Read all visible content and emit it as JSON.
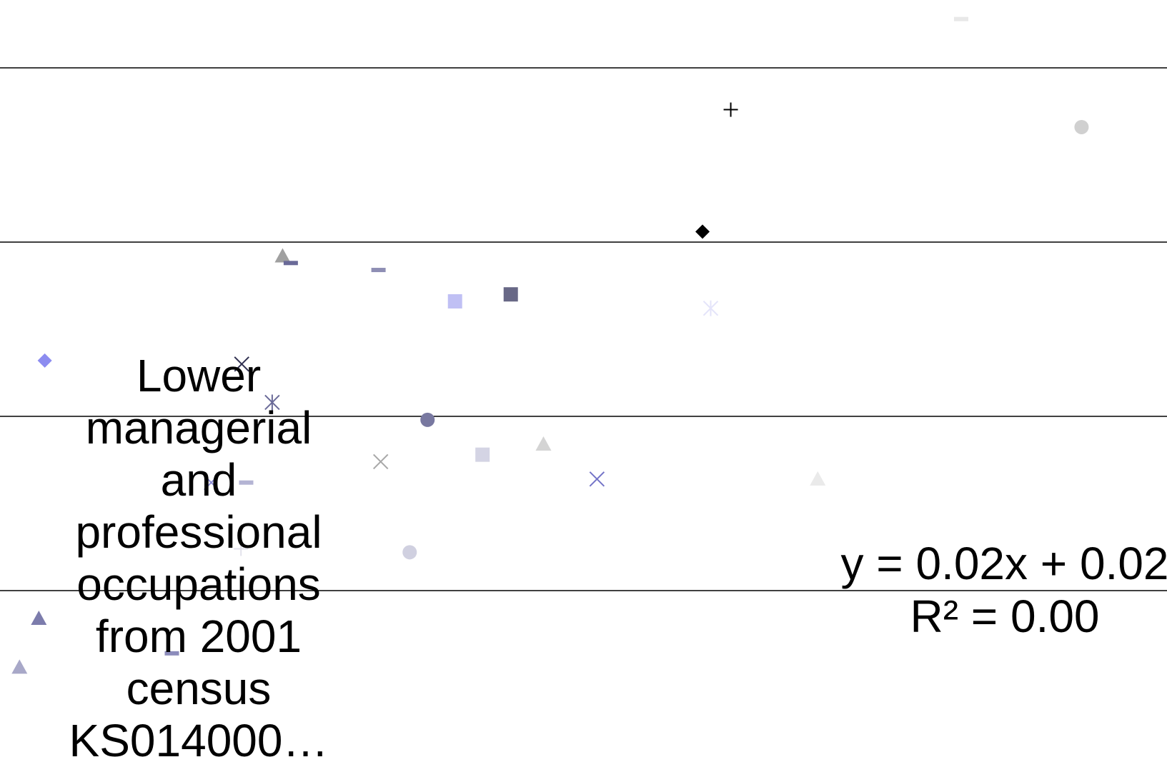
{
  "chart_data": {
    "type": "scatter",
    "grid": true,
    "ylim": [
      -0.25,
      1.75
    ],
    "gridlines_y": [
      0,
      0.5,
      1,
      1.5
    ],
    "series": [
      {
        "marker": "diamond",
        "color": "#8c8cf0",
        "x": 0.41,
        "y": 0.66
      },
      {
        "marker": "x",
        "color": "#303050",
        "x": 3.06,
        "y": 0.65
      },
      {
        "marker": "star",
        "color": "#6a6a98",
        "x": 3.47,
        "y": 0.54
      },
      {
        "marker": "triangle",
        "color": "#a0a0a0",
        "x": 3.61,
        "y": 0.96
      },
      {
        "marker": "dash",
        "color": "#6a6a98",
        "x": 3.72,
        "y": 0.94
      },
      {
        "marker": "dash",
        "color": "#8e8eb4",
        "x": 4.9,
        "y": 0.92
      },
      {
        "marker": "square",
        "color": "#c0c0f4",
        "x": 5.93,
        "y": 0.83
      },
      {
        "marker": "square",
        "color": "#686886",
        "x": 6.68,
        "y": 0.85
      },
      {
        "marker": "circle",
        "color": "#7878a0",
        "x": 5.56,
        "y": 0.49
      },
      {
        "marker": "x",
        "color": "#a8a8a8",
        "x": 4.93,
        "y": 0.37
      },
      {
        "marker": "square",
        "color": "#d4d4e4",
        "x": 6.3,
        "y": 0.39
      },
      {
        "marker": "triangle",
        "color": "#d4d4d4",
        "x": 7.12,
        "y": 0.42
      },
      {
        "marker": "x",
        "color": "#7474c8",
        "x": 7.84,
        "y": 0.32
      },
      {
        "marker": "triangle",
        "color": "#eaeaea",
        "x": 10.81,
        "y": 0.32
      },
      {
        "marker": "x",
        "color": "#8c8cd4",
        "x": 2.65,
        "y": 0.31
      },
      {
        "marker": "dash",
        "color": "#b4b4d4",
        "x": 3.12,
        "y": 0.31
      },
      {
        "marker": "circle",
        "color": "#d0d0e0",
        "x": 5.32,
        "y": 0.11
      },
      {
        "marker": "plus",
        "color": "#e2e2ec",
        "x": 3.05,
        "y": 0.12
      },
      {
        "marker": "star",
        "color": "#e4e4fa",
        "x": 9.37,
        "y": 0.81
      },
      {
        "marker": "diamond",
        "color": "#000000",
        "x": 9.26,
        "y": 1.03
      },
      {
        "marker": "plus",
        "color": "#000000",
        "x": 9.64,
        "y": 1.38
      },
      {
        "marker": "circle",
        "color": "#d0d0d0",
        "x": 14.36,
        "y": 1.33
      },
      {
        "marker": "dash",
        "color": "#e8e8e8",
        "x": 12.74,
        "y": 1.64
      },
      {
        "marker": "triangle",
        "color": "#7c7cac",
        "x": 0.33,
        "y": -0.08
      },
      {
        "marker": "triangle",
        "color": "#a8a8c8",
        "x": 0.07,
        "y": -0.22
      },
      {
        "marker": "dash",
        "color": "#8c8cbc",
        "x": 2.12,
        "y": -0.18
      }
    ],
    "legend_label": "Lower managerial and professional occupations from 2001 census KS014000…",
    "trendline_equation": "y = 0.02x + 0.02",
    "trendline_r2": "R² = 0.00"
  }
}
